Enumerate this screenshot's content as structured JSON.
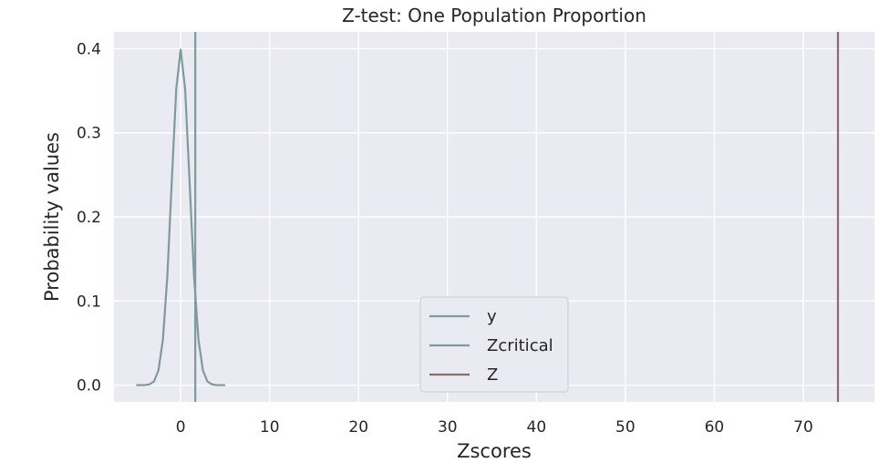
{
  "chart_data": {
    "type": "line",
    "title": "Z-test: One Population Proportion",
    "xlabel": "Zscores",
    "ylabel": "Probability values",
    "xlim": [
      -7.5,
      78
    ],
    "ylim": [
      -0.02,
      0.42
    ],
    "xticks": [
      0,
      10,
      20,
      30,
      40,
      50,
      60,
      70
    ],
    "yticks": [
      0.0,
      0.1,
      0.2,
      0.3,
      0.4
    ],
    "xtick_labels": [
      "0",
      "10",
      "20",
      "30",
      "40",
      "50",
      "60",
      "70"
    ],
    "ytick_labels": [
      "0.0",
      "0.1",
      "0.2",
      "0.3",
      "0.4"
    ],
    "grid": true,
    "legend_position": "lower-center",
    "series": [
      {
        "name": "y",
        "kind": "curve",
        "color": "#7f9a9e",
        "x": [
          -5,
          -4.5,
          -4,
          -3.5,
          -3,
          -2.5,
          -2,
          -1.5,
          -1,
          -0.5,
          0,
          0.5,
          1,
          1.5,
          2,
          2.5,
          3,
          3.5,
          4,
          4.5,
          5
        ],
        "y": [
          0.0,
          0.0,
          0.0001,
          0.0009,
          0.0044,
          0.0175,
          0.054,
          0.1295,
          0.242,
          0.3521,
          0.3989,
          0.3521,
          0.242,
          0.1295,
          0.054,
          0.0175,
          0.0044,
          0.0009,
          0.0001,
          0.0,
          0.0
        ]
      },
      {
        "name": "Zcritical",
        "kind": "vline",
        "color": "#7f9a9e",
        "x": 1.64
      },
      {
        "name": "Z",
        "kind": "vline",
        "color": "#8a6b6e",
        "x": 73.9
      }
    ]
  }
}
